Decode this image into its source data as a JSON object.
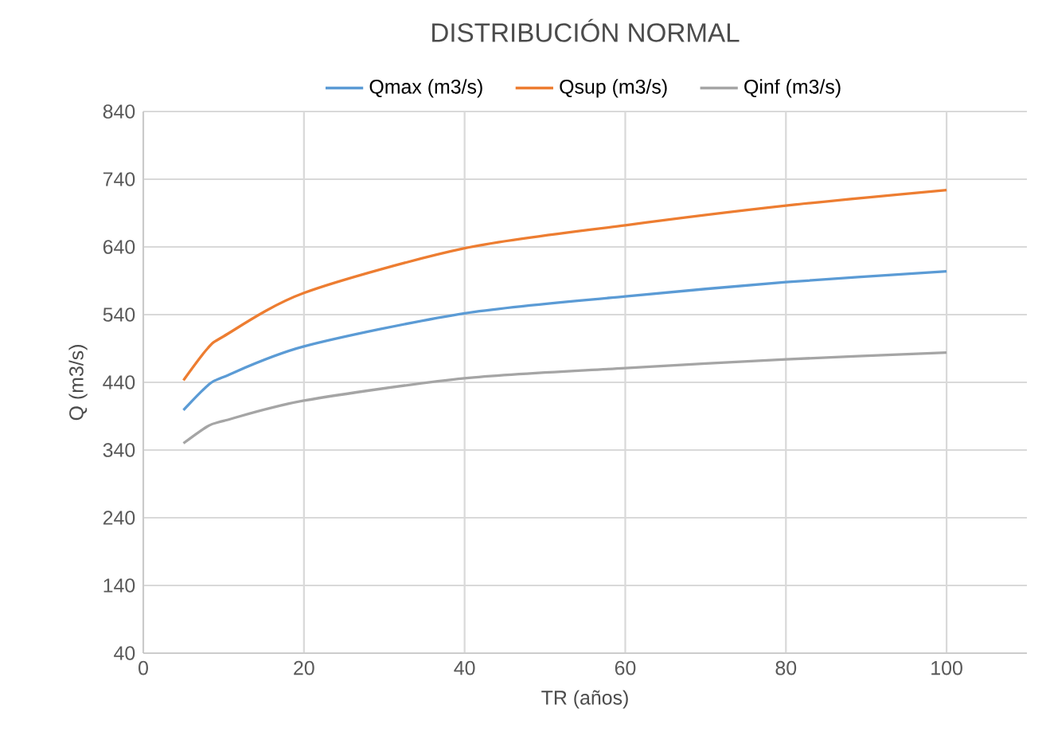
{
  "chart_data": {
    "type": "line",
    "title": "DISTRIBUCIÓN NORMAL",
    "xlabel": "TR (años)",
    "ylabel": "Q (m3/s)",
    "x": [
      5,
      8,
      10,
      20,
      40,
      60,
      80,
      100
    ],
    "series": [
      {
        "name": "Qmax (m3/s)",
        "color": "#5b9bd5",
        "values": [
          399,
          435,
          448,
          493,
          542,
          567,
          588,
          604
        ]
      },
      {
        "name": "Qsup (m3/s)",
        "color": "#ed7d31",
        "values": [
          443,
          490,
          508,
          572,
          638,
          672,
          701,
          724
        ]
      },
      {
        "name": "Qinf (m3/s)",
        "color": "#a5a5a5",
        "values": [
          350,
          375,
          383,
          413,
          446,
          461,
          474,
          484
        ]
      }
    ],
    "xlim": [
      0,
      110
    ],
    "ylim": [
      40,
      840
    ],
    "xticks": [
      0,
      20,
      40,
      60,
      80,
      100
    ],
    "yticks": [
      40,
      140,
      240,
      340,
      440,
      540,
      640,
      740,
      840
    ],
    "grid": true,
    "legend": "top",
    "marker": "none",
    "line_style": "solid"
  }
}
